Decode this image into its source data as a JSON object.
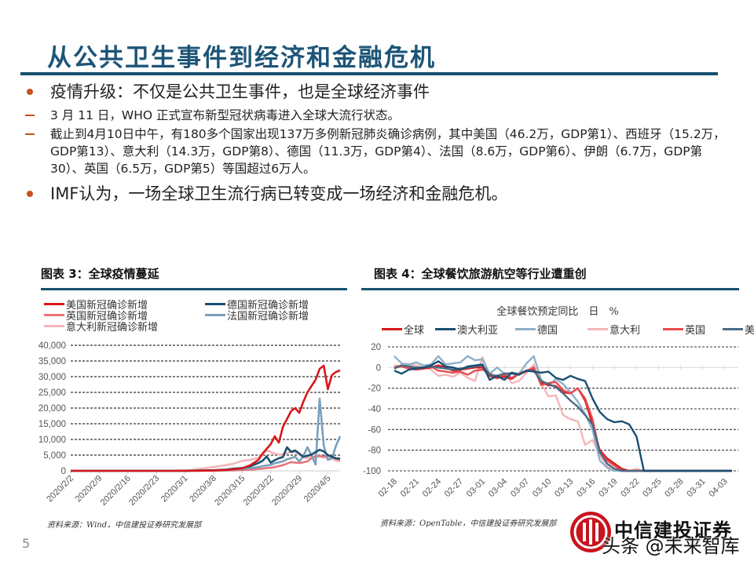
{
  "slide": {
    "title": "从公共卫生事件到经济和金融危机",
    "page_number": "5",
    "bullets": [
      {
        "level": 1,
        "text": "疫情升级：不仅是公共卫生事件，也是全球经济事件"
      },
      {
        "level": 2,
        "text": "3 月 11 日，WHO 正式宣布新型冠状病毒进入全球大流行状态。"
      },
      {
        "level": 2,
        "text": "截止到4月10日中午，有180多个国家出现137万多例新冠肺炎确诊病例，其中美国（46.2万，GDP第1）、西班牙（15.2万，GDP第13）、意大利（14.3万，GDP第8）、德国（11.3万，GDP第4）、法国（8.6万，GDP第6）、伊朗（6.7万，GDP第30）、英国（6.5万，GDP第5）等国超过6万人。"
      },
      {
        "level": 1,
        "text": "IMF认为，一场全球卫生流行病已转变成一场经济和金融危机。"
      }
    ],
    "logo": {
      "name": "中信建投证券",
      "color": "#c8141e"
    },
    "watermark": "头条 @未来智库"
  },
  "chart_data": [
    {
      "type": "line",
      "title": "图表 3：全球疫情蔓延",
      "source": "资料来源：Wind，中信建投证券研究发展部",
      "xlabel": "",
      "ylabel": "",
      "ylim": [
        0,
        40000
      ],
      "yticks": [
        "40,000",
        "35,000",
        "30,000",
        "25,000",
        "20,000",
        "15,000",
        "10,000",
        "5,000",
        "0"
      ],
      "xticks": [
        "2020/2/2",
        "2020/2/9",
        "2020/2/16",
        "2020/2/23",
        "2020/3/1",
        "2020/3/8",
        "2020/3/15",
        "2020/3/22",
        "2020/3/29",
        "2020/4/5"
      ],
      "grid": "dashed horizontal",
      "legend_position": "top",
      "x": [
        "2/2",
        "2/9",
        "2/16",
        "2/23",
        "3/1",
        "3/4",
        "3/8",
        "3/11",
        "3/13",
        "3/15",
        "3/17",
        "3/19",
        "3/20",
        "3/21",
        "3/22",
        "3/23",
        "3/24",
        "3/25",
        "3/26",
        "3/27",
        "3/28",
        "3/29",
        "3/30",
        "3/31",
        "4/1",
        "4/2",
        "4/3",
        "4/4",
        "4/5",
        "4/6",
        "4/7",
        "4/8"
      ],
      "series": [
        {
          "name": "美国新冠确诊新增",
          "color": "#d7191c",
          "values": [
            0,
            0,
            0,
            0,
            0,
            50,
            100,
            300,
            500,
            800,
            1800,
            3500,
            5500,
            7000,
            8500,
            11000,
            9000,
            14000,
            16500,
            19000,
            20000,
            18500,
            22000,
            25000,
            27000,
            29000,
            32500,
            33500,
            26000,
            30500,
            31500,
            32000
          ]
        },
        {
          "name": "德国新冠确诊新增",
          "color": "#1b4f72",
          "values": [
            0,
            0,
            0,
            0,
            0,
            100,
            200,
            400,
            700,
            900,
            1500,
            2500,
            3200,
            4600,
            2600,
            3400,
            4000,
            4400,
            7500,
            6000,
            6500,
            5500,
            4500,
            4800,
            5200,
            6000,
            6700,
            6200,
            5000,
            4500,
            4000,
            3900
          ]
        },
        {
          "name": "英国新冠确诊新增",
          "color": "#e8757a",
          "values": [
            0,
            0,
            0,
            0,
            0,
            20,
            50,
            100,
            150,
            250,
            400,
            600,
            700,
            900,
            1000,
            1200,
            1500,
            1800,
            2300,
            2800,
            2600,
            2500,
            2700,
            3000,
            4000,
            4500,
            4700,
            4500,
            5000,
            4500,
            3800,
            3500
          ]
        },
        {
          "name": "法国新冠确诊新增",
          "color": "#7a9fbd",
          "values": [
            0,
            0,
            0,
            0,
            0,
            50,
            100,
            200,
            400,
            600,
            900,
            1200,
            1500,
            1700,
            1900,
            2400,
            2700,
            3000,
            3700,
            4000,
            4500,
            3000,
            4700,
            7500,
            5000,
            2000,
            23000,
            8000,
            3500,
            4000,
            8000,
            11000
          ]
        },
        {
          "name": "意大利新冠确诊新增",
          "color": "#f4b6b8",
          "values": [
            0,
            0,
            0,
            0,
            100,
            500,
            1200,
            1800,
            2300,
            3200,
            3500,
            4200,
            5300,
            6500,
            6000,
            5500,
            5200,
            5200,
            5500,
            6200,
            5900,
            5200,
            4200,
            4100,
            4500,
            4800,
            4600,
            4300,
            4200,
            3800,
            3300,
            3000
          ]
        }
      ]
    },
    {
      "type": "line",
      "title": "图表 4：全球餐饮旅游航空等行业遭重创",
      "subtitle": "全球餐饮预定同比　日　%",
      "source": "资料来源：OpenTable，中信建投证券研究发展部",
      "xlabel": "",
      "ylabel": "%",
      "ylim": [
        -100,
        20
      ],
      "yticks": [
        "20",
        "0",
        "-20",
        "-40",
        "-60",
        "-80",
        "-100"
      ],
      "xticks": [
        "02-18",
        "02-21",
        "02-24",
        "02-27",
        "03-01",
        "03-04",
        "03-07",
        "03-10",
        "03-13",
        "03-16",
        "03-19",
        "03-22",
        "03-25",
        "03-28",
        "03-31",
        "04-03"
      ],
      "grid": "dashed horizontal",
      "legend_position": "top",
      "x": [
        "02-18",
        "02-19",
        "02-20",
        "02-21",
        "02-22",
        "02-23",
        "02-24",
        "02-25",
        "02-26",
        "02-27",
        "02-28",
        "02-29",
        "03-01",
        "03-02",
        "03-03",
        "03-04",
        "03-05",
        "03-06",
        "03-07",
        "03-08",
        "03-09",
        "03-10",
        "03-11",
        "03-12",
        "03-13",
        "03-14",
        "03-15",
        "03-16",
        "03-17",
        "03-18",
        "03-19",
        "03-20",
        "03-21",
        "03-22",
        "03-23",
        "03-24",
        "03-25",
        "03-26",
        "03-27",
        "03-28",
        "03-29",
        "03-30",
        "03-31",
        "04-01",
        "04-02",
        "04-03",
        "04-04"
      ],
      "series": [
        {
          "name": "全球",
          "color": "#d7191c",
          "values": [
            0,
            2,
            0,
            -2,
            -1,
            0,
            2,
            0,
            -3,
            -2,
            -1,
            0,
            0,
            -8,
            -10,
            -9,
            -11,
            -6,
            -3,
            -1,
            -15,
            -17,
            -18,
            -24,
            -25,
            -20,
            -32,
            -55,
            -80,
            -88,
            -93,
            -98,
            -100,
            -100,
            -100,
            -100,
            -100,
            -100,
            -100,
            -100,
            -100,
            -100,
            -100,
            -100,
            -100,
            -100,
            -100
          ]
        },
        {
          "name": "澳大利亚",
          "color": "#1b4f72",
          "values": [
            -3,
            -6,
            -2,
            -1,
            0,
            2,
            6,
            1,
            0,
            -2,
            1,
            2,
            3,
            -12,
            -8,
            -12,
            -5,
            -7,
            -3,
            -4,
            -5,
            -4,
            -10,
            -12,
            -8,
            -11,
            -13,
            -30,
            -43,
            -50,
            -53,
            -52,
            -55,
            -67,
            -100,
            -100,
            -100,
            -100,
            -100,
            -100,
            -100,
            -100,
            -100,
            -100,
            -100,
            -100,
            -100
          ]
        },
        {
          "name": "德国",
          "color": "#8fb0c8",
          "values": [
            11,
            4,
            3,
            5,
            2,
            3,
            11,
            3,
            4,
            5,
            11,
            7,
            8,
            -6,
            0,
            -6,
            -5,
            -6,
            4,
            11,
            -12,
            -18,
            -11,
            -16,
            -24,
            -33,
            -45,
            -60,
            -90,
            -97,
            -100,
            -100,
            -100,
            -100,
            -100,
            -100,
            -100,
            -100,
            -100,
            -100,
            -100,
            -100,
            -100,
            -100,
            -100,
            -100,
            -100
          ]
        },
        {
          "name": "意大利",
          "color": "#f4b6b8",
          "values": [
            2,
            1,
            3,
            2,
            0,
            -2,
            -8,
            -7,
            -9,
            -5,
            -10,
            -13,
            10,
            -8,
            -11,
            -5,
            -15,
            -13,
            -5,
            3,
            -15,
            -28,
            -27,
            -46,
            -50,
            -52,
            -75,
            -70,
            -85,
            -95,
            -99,
            -100,
            -100,
            -98,
            -100,
            -100,
            -100,
            -100,
            -100,
            -100,
            -100,
            -100,
            -100,
            -100,
            -100,
            -100,
            -100
          ]
        },
        {
          "name": "英国",
          "color": "#e84b4f",
          "values": [
            0,
            1,
            -1,
            -2,
            0,
            1,
            -3,
            -4,
            -5,
            -4,
            -7,
            -3,
            -2,
            -6,
            -9,
            -7,
            -10,
            -6,
            -4,
            0,
            -17,
            -15,
            -14,
            -22,
            -25,
            -20,
            -30,
            -50,
            -82,
            -90,
            -95,
            -100,
            -100,
            -100,
            -100,
            -100,
            -100,
            -100,
            -100,
            -100,
            -100,
            -100,
            -100,
            -100,
            -100,
            -100,
            -100
          ]
        },
        {
          "name": "美国",
          "color": "#4a6b85",
          "values": [
            -1,
            2,
            1,
            0,
            0,
            1,
            0,
            -1,
            -2,
            -1,
            0,
            1,
            2,
            -7,
            -8,
            -6,
            -6,
            -7,
            -3,
            -3,
            -13,
            -16,
            -19,
            -25,
            -32,
            -38,
            -46,
            -55,
            -82,
            -93,
            -98,
            -100,
            -100,
            -100,
            -100,
            -100,
            -100,
            -100,
            -100,
            -100,
            -100,
            -100,
            -100,
            -100,
            -100,
            -100,
            -100
          ]
        }
      ]
    }
  ]
}
